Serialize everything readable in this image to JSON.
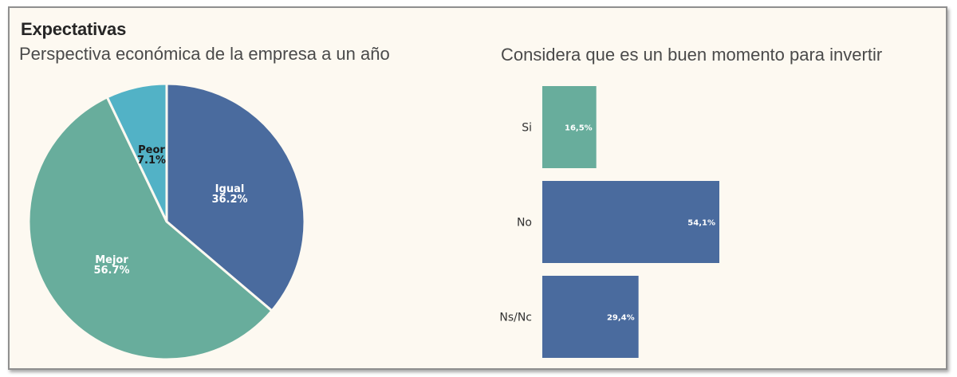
{
  "header": {
    "title": "Expectativas"
  },
  "chart_data": [
    {
      "type": "pie",
      "title": "Perspectiva económica de la empresa a un año",
      "slices": [
        {
          "label": "Igual",
          "value": 36.2,
          "display": "36.2%",
          "color": "#4a6b9e"
        },
        {
          "label": "Mejor",
          "value": 56.7,
          "display": "56.7%",
          "color": "#68ad9c"
        },
        {
          "label": "Peor",
          "value": 7.1,
          "display": "7.1%",
          "color": "#52b2c6"
        }
      ]
    },
    {
      "type": "bar",
      "orientation": "horizontal",
      "title": "Considera que es un buen momento para invertir",
      "categories": [
        "Si",
        "No",
        "Ns/Nc"
      ],
      "values": [
        16.5,
        54.1,
        29.4
      ],
      "value_labels": [
        "16,5%",
        "54,1%",
        "29,4%"
      ],
      "colors": [
        "#68ad9c",
        "#4a6b9e",
        "#4a6b9e"
      ]
    }
  ]
}
